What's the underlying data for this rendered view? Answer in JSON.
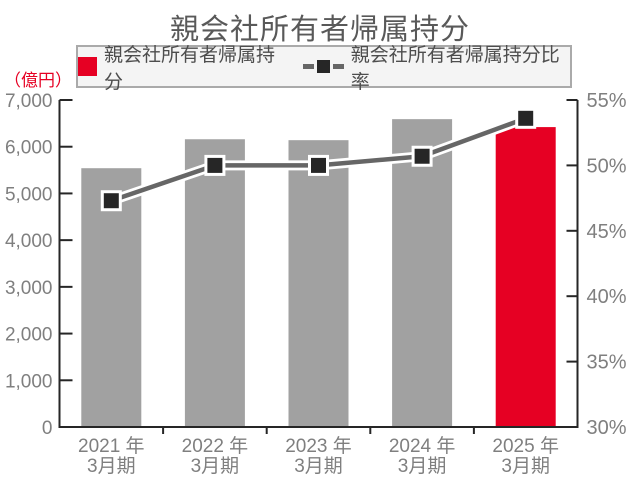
{
  "title": "親会社所有者帰属持分",
  "unit_label": "（億円）",
  "legend": {
    "bar_label": "親会社所有者帰属持分",
    "line_label": "親会社所有者帰属持分比率"
  },
  "colors": {
    "bar_gray": "#a1a1a1",
    "bar_red": "#e60023",
    "line_gray": "#666666",
    "marker_black": "#262626",
    "axis_line": "#262626",
    "tick_label": "#7f7f7f",
    "title_text": "#595959",
    "unit_text": "#e60023",
    "marker_casing": "#ffffff"
  },
  "chart_data": {
    "type": "bar",
    "subtype": "bar-line-combo",
    "title": "親会社所有者帰属持分",
    "categories": [
      {
        "line1": "2021 年",
        "line2": "3月期"
      },
      {
        "line1": "2022 年",
        "line2": "3月期"
      },
      {
        "line1": "2023 年",
        "line2": "3月期"
      },
      {
        "line1": "2024 年",
        "line2": "3月期"
      },
      {
        "line1": "2025 年",
        "line2": "3月期"
      }
    ],
    "series": [
      {
        "name": "親会社所有者帰属持分",
        "type": "bar",
        "axis": "left",
        "unit": "億円",
        "values": [
          5540,
          6160,
          6140,
          6590,
          6420
        ],
        "highlight_index": 4
      },
      {
        "name": "親会社所有者帰属持分比率",
        "type": "line",
        "axis": "right",
        "unit": "%",
        "values": [
          47.3,
          50.0,
          50.0,
          50.7,
          53.6
        ]
      }
    ],
    "left_axis": {
      "label": "（億円）",
      "min": 0,
      "max": 7000,
      "step": 1000,
      "tick_labels": [
        "0",
        "1,000",
        "2,000",
        "3,000",
        "4,000",
        "5,000",
        "6,000",
        "7,000"
      ]
    },
    "right_axis": {
      "min": 30,
      "max": 55,
      "step": 5,
      "tick_labels": [
        "30%",
        "35%",
        "40%",
        "45%",
        "50%",
        "55%"
      ]
    },
    "grid": false,
    "legend_position": "top"
  }
}
